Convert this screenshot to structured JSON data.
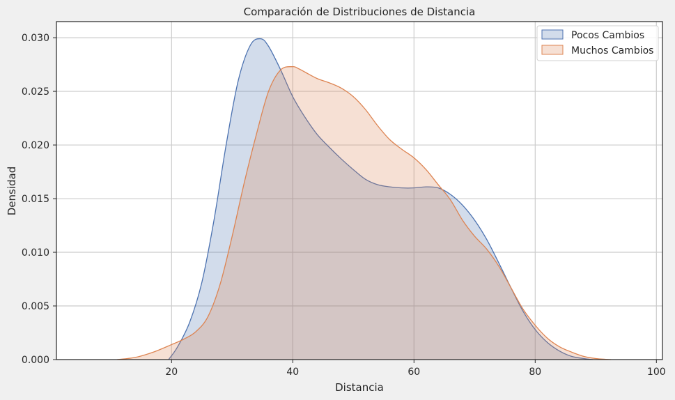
{
  "chart_data": {
    "type": "area",
    "title": "Comparación de Distribuciones de Distancia",
    "xlabel": "Distancia",
    "ylabel": "Densidad",
    "xlim": [
      1,
      101
    ],
    "ylim": [
      0,
      0.0315
    ],
    "xticks": [
      20,
      40,
      60,
      80,
      100
    ],
    "yticks": [
      0.0,
      0.005,
      0.01,
      0.015,
      0.02,
      0.025,
      0.03
    ],
    "ytick_labels": [
      "0.000",
      "0.005",
      "0.010",
      "0.015",
      "0.020",
      "0.025",
      "0.030"
    ],
    "grid": true,
    "legend_position": "top-right",
    "series": [
      {
        "name": "Pocos Cambios",
        "color": "#4c72b0",
        "x": [
          19.5,
          21,
          23,
          25,
          27,
          29,
          31,
          33,
          34.7,
          36,
          38,
          40,
          42,
          44,
          46,
          48,
          50,
          52,
          54,
          56,
          58,
          60,
          62,
          64,
          66,
          68,
          70,
          72,
          74,
          76,
          78,
          80,
          82,
          84,
          86,
          88,
          89.5
        ],
        "values": [
          0.0,
          0.0012,
          0.0035,
          0.0072,
          0.013,
          0.02,
          0.026,
          0.0293,
          0.0299,
          0.0292,
          0.027,
          0.0245,
          0.0226,
          0.021,
          0.0198,
          0.0187,
          0.0177,
          0.0168,
          0.0163,
          0.0161,
          0.016,
          0.016,
          0.0161,
          0.016,
          0.0154,
          0.0144,
          0.013,
          0.0112,
          0.009,
          0.0067,
          0.0045,
          0.0028,
          0.0016,
          0.0008,
          0.0003,
          0.0001,
          0.0
        ]
      },
      {
        "name": "Muchos Cambios",
        "color": "#dd8452",
        "x": [
          11,
          14,
          17,
          20,
          22,
          24,
          26,
          28,
          30,
          32,
          34,
          36,
          38,
          40,
          41,
          42,
          44,
          46,
          48,
          50,
          52,
          54,
          56,
          58,
          60,
          62,
          64,
          66,
          68,
          70,
          72,
          74,
          76,
          78,
          80,
          82,
          84,
          86,
          88,
          90,
          92.5
        ],
        "values": [
          0.0,
          0.0002,
          0.0007,
          0.0014,
          0.0019,
          0.0026,
          0.004,
          0.007,
          0.0115,
          0.0165,
          0.021,
          0.025,
          0.027,
          0.0273,
          0.0271,
          0.0268,
          0.0262,
          0.0258,
          0.0253,
          0.0245,
          0.0233,
          0.0218,
          0.0205,
          0.0196,
          0.0188,
          0.0177,
          0.0163,
          0.0149,
          0.013,
          0.0115,
          0.0103,
          0.0087,
          0.0067,
          0.0047,
          0.0032,
          0.002,
          0.0012,
          0.0007,
          0.0003,
          0.0001,
          0.0
        ]
      }
    ]
  }
}
